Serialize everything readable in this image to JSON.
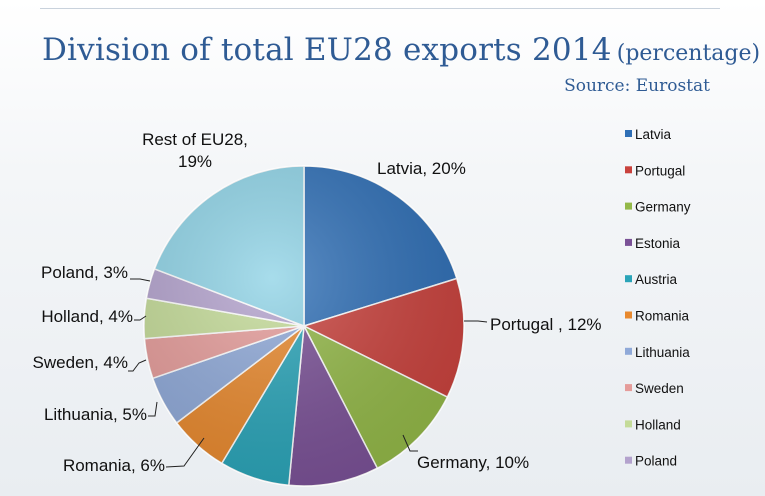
{
  "header": {
    "title": "Division of total EU28 exports 2014",
    "title_suffix": "(percentage)",
    "source": "Source: Eurostat"
  },
  "chart_data": {
    "type": "pie",
    "title": "Division of total EU28 exports 2014 (percentage)",
    "source": "Source: Eurostat",
    "start_angle": 0,
    "legend_placement": "right",
    "slices": [
      {
        "name": "Latvia",
        "value": 20,
        "color": "#2f6fb6",
        "label": "Latvia, 20%"
      },
      {
        "name": "Portugal",
        "value": 12,
        "color": "#c9423d",
        "label": "Portugal , 12%"
      },
      {
        "name": "Germany",
        "value": 10,
        "color": "#93b848",
        "label": "Germany, 10%"
      },
      {
        "name": "Estonia",
        "value": 9,
        "color": "#7a5196",
        "label": ""
      },
      {
        "name": "Austria",
        "value": 7,
        "color": "#2aa4b8",
        "label": ""
      },
      {
        "name": "Romania",
        "value": 6,
        "color": "#e8892e",
        "label": "Romania, 6%"
      },
      {
        "name": "Lithuania",
        "value": 5,
        "color": "#8fa9d8",
        "label": "Lithuania, 5%"
      },
      {
        "name": "Sweden",
        "value": 4,
        "color": "#e59c9a",
        "label": "Sweden, 4%"
      },
      {
        "name": "Holland",
        "value": 4,
        "color": "#c4db98",
        "label": "Holland, 4%"
      },
      {
        "name": "Poland",
        "value": 3,
        "color": "#b3a2cd",
        "label": "Poland, 3%"
      },
      {
        "name": "Rest of EU28",
        "value": 19,
        "color": "#8fd3e6",
        "label": "Rest of EU28,|19%"
      }
    ],
    "legend": [
      "Latvia",
      "Portugal",
      "Germany",
      "Estonia",
      "Austria",
      "Romania",
      "Lithuania",
      "Sweden",
      "Holland",
      "Poland"
    ]
  }
}
